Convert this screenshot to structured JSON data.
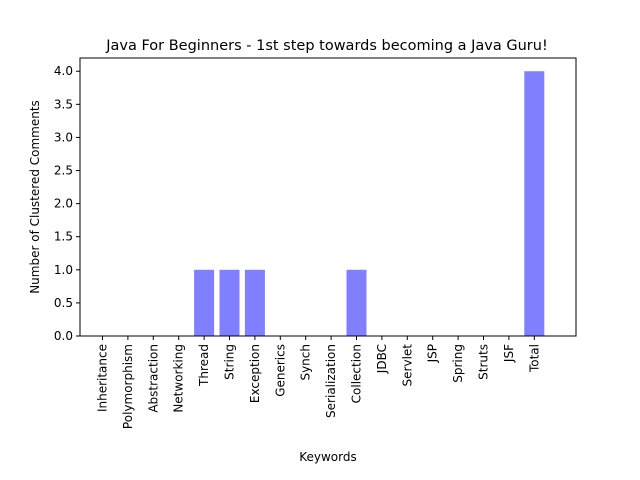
{
  "chart_data": {
    "type": "bar",
    "title": "Java For Beginners - 1st step towards becoming a Java Guru!",
    "xlabel": "Keywords",
    "ylabel": "Number of Clustered Comments",
    "categories": [
      "Inheritance",
      "Polymorphism",
      "Abstraction",
      "Networking",
      "Thread",
      "String",
      "Exception",
      "Generics",
      "Synch",
      "Serialization",
      "Collection",
      "JDBC",
      "Servlet",
      "JSP",
      "Spring",
      "Struts",
      "JSF",
      "Total"
    ],
    "values": [
      0,
      0,
      0,
      0,
      1,
      1,
      1,
      0,
      0,
      0,
      1,
      0,
      0,
      0,
      0,
      0,
      0,
      4
    ],
    "ylim": [
      0,
      4.2
    ],
    "yticks": [
      "0.0",
      "0.5",
      "1.0",
      "1.5",
      "2.0",
      "2.5",
      "3.0",
      "3.5",
      "4.0"
    ],
    "bar_color": "#8080ff",
    "grid": false,
    "legend": "none"
  }
}
